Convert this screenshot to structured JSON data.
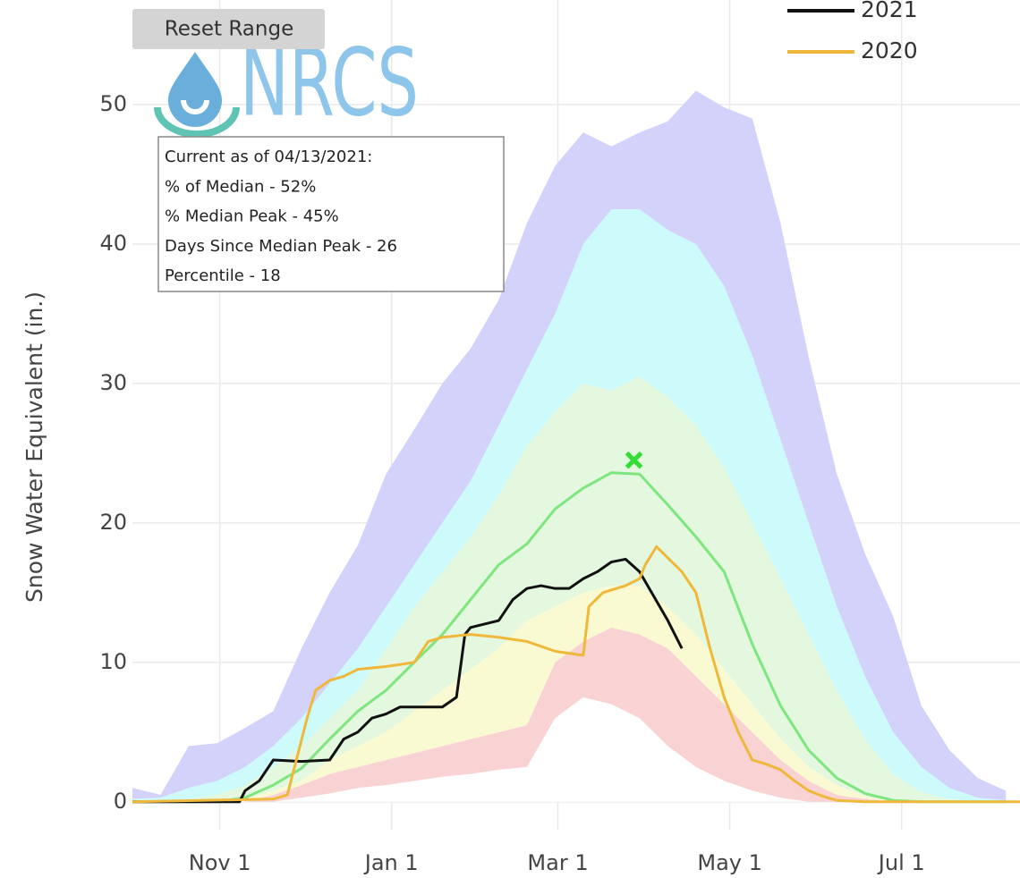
{
  "chart_data": {
    "type": "line",
    "y_label": "Snow Water Equivalent (in.)",
    "reset_button": "Reset Range",
    "logo_text": "NRCS",
    "info_box": [
      "Current as of 04/13/2021:",
      "% of Median - 52%",
      "% Median Peak - 45%",
      "Days Since Median Peak - 26",
      "Percentile - 18"
    ],
    "xlim": [
      0,
      315
    ],
    "ylim": [
      -2,
      57.5
    ],
    "xticks": [
      {
        "value": 31,
        "label": "Nov 1"
      },
      {
        "value": 92,
        "label": "Jan 1"
      },
      {
        "value": 151,
        "label": "Mar 1"
      },
      {
        "value": 212,
        "label": "May 1"
      },
      {
        "value": 273,
        "label": "Jul 1"
      }
    ],
    "yticks": [
      0,
      10,
      20,
      30,
      40,
      50
    ],
    "grid": true,
    "x": [
      0,
      10,
      20,
      30,
      40,
      50,
      60,
      70,
      80,
      90,
      100,
      110,
      120,
      130,
      140,
      150,
      160,
      170,
      180,
      190,
      200,
      210,
      220,
      230,
      240,
      250,
      260,
      270,
      280,
      290,
      300,
      310
    ],
    "series": [
      {
        "color": "#ffffff",
        "fill": "tozeroy",
        "values": [
          0,
          0,
          0,
          0,
          0,
          0,
          0.3,
          0.6,
          1,
          1.2,
          1.5,
          1.8,
          2,
          2.3,
          2.5,
          6,
          7.5,
          7,
          6,
          4,
          2.5,
          1.5,
          0.8,
          0.3,
          0,
          0,
          0,
          0,
          0,
          0,
          0,
          0
        ]
      },
      {
        "color": "#f9d3d3",
        "fill": "tonexty",
        "values": [
          0,
          0,
          0,
          0,
          0,
          0.5,
          1.2,
          2,
          2.5,
          3,
          3.5,
          4,
          4.5,
          5,
          5.5,
          10,
          11.5,
          12.5,
          12,
          11,
          9,
          7,
          5,
          3,
          1.5,
          0.5,
          0.2,
          0,
          0,
          0,
          0,
          0
        ]
      },
      {
        "color": "#fafad2",
        "fill": "tonexty",
        "values": [
          0,
          0,
          0,
          0,
          0.2,
          0.8,
          1.5,
          3,
          4,
          5,
          6.5,
          8,
          9.5,
          11,
          13,
          14,
          15,
          15.5,
          15.5,
          14,
          12,
          9.5,
          7,
          4.5,
          2.5,
          1.2,
          0.4,
          0.1,
          0,
          0,
          0,
          0
        ]
      },
      {
        "color": "#e3f8df",
        "fill": "tonexty",
        "values": [
          0,
          0,
          0.2,
          0.5,
          1.2,
          2.5,
          4,
          6,
          8,
          11,
          14,
          16.5,
          19,
          22,
          25.5,
          28,
          30,
          29.5,
          30.5,
          29,
          27,
          24,
          20,
          16,
          12,
          8,
          4.5,
          2,
          0.7,
          0.2,
          0,
          0
        ]
      },
      {
        "color": "#cdfafa",
        "fill": "tonexty",
        "values": [
          0.2,
          0.3,
          1,
          1.5,
          2.5,
          4,
          6,
          8.5,
          11,
          14,
          17,
          20,
          23,
          27,
          31,
          35,
          40,
          42.5,
          42.5,
          41,
          40,
          37,
          32,
          26,
          20,
          14,
          9,
          5,
          2.5,
          1,
          0.3,
          0.1
        ]
      },
      {
        "color": "#d2d2fa",
        "fill": "tonexty",
        "values": [
          1,
          0.5,
          4,
          4.2,
          5.3,
          6.5,
          11,
          15,
          18.4,
          23.5,
          26.7,
          30,
          32.5,
          36,
          41.5,
          45.6,
          48,
          47,
          48,
          48.8,
          51,
          49.8,
          49,
          41.5,
          31.9,
          23.5,
          17.8,
          13.3,
          6.9,
          3.7,
          1.7,
          0.8
        ]
      },
      {
        "color": "#7ee67e",
        "fill": "none",
        "values": [
          0,
          0,
          0,
          0,
          0.3,
          1.2,
          2.4,
          4.5,
          6.5,
          8,
          10,
          12,
          14.5,
          17,
          18.5,
          21,
          22.5,
          23.6,
          23.5,
          21.3,
          19,
          16.5,
          11.3,
          6.9,
          3.7,
          1.7,
          0.6,
          0.1,
          0,
          0,
          0,
          0
        ]
      },
      {
        "name": "2021",
        "color": "#111111",
        "fill": "none",
        "x": [
          0,
          38,
          40,
          45,
          50,
          60,
          70,
          75,
          80,
          85,
          90,
          95,
          110,
          115,
          118,
          120,
          130,
          135,
          140,
          145,
          150,
          155,
          160,
          165,
          170,
          175,
          180,
          190,
          195
        ],
        "values": [
          0,
          0,
          0.8,
          1.5,
          3,
          2.9,
          3,
          4.5,
          5,
          6,
          6.3,
          6.8,
          6.8,
          7.5,
          12,
          12.5,
          13,
          14.5,
          15.3,
          15.5,
          15.3,
          15.3,
          16,
          16.5,
          17.2,
          17.4,
          16.5,
          13,
          11
        ]
      },
      {
        "name": "2020",
        "color": "#f0b83a",
        "fill": "none",
        "x": [
          0,
          50,
          55,
          62,
          65,
          70,
          75,
          80,
          90,
          100,
          105,
          110,
          120,
          130,
          140,
          150,
          160,
          162,
          167,
          175,
          180,
          182,
          186,
          195,
          200,
          205,
          210,
          215,
          220,
          225,
          230,
          235,
          240,
          245,
          250,
          260,
          315
        ],
        "values": [
          0,
          0.2,
          0.5,
          6,
          8,
          8.7,
          9,
          9.5,
          9.7,
          10,
          11.5,
          11.8,
          12,
          11.8,
          11.5,
          10.8,
          10.5,
          14,
          15,
          15.5,
          16,
          17,
          18.3,
          16.5,
          15,
          11,
          7.5,
          5,
          3,
          2.7,
          2.3,
          1.5,
          0.8,
          0.4,
          0.1,
          0,
          0
        ]
      }
    ],
    "peak": {
      "x": 178,
      "y": 24.5,
      "color": "#33dd33"
    }
  }
}
